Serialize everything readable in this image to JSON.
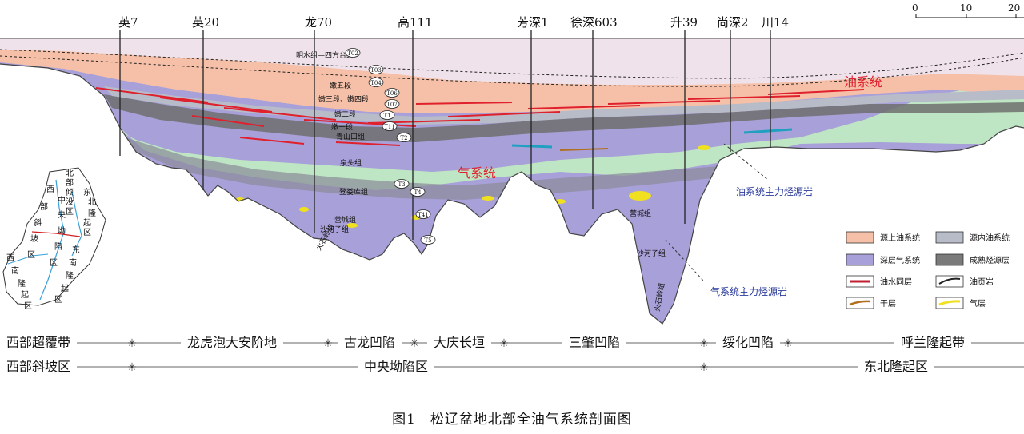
{
  "wells": [
    "英7",
    "英20",
    "龙70",
    "高111",
    "芳深1",
    "徐深603",
    "升39",
    "尚深2",
    "川14"
  ],
  "formations": [
    "明水组—四方台组",
    "嫩五段",
    "嫩三段、嫩四段",
    "嫩二段",
    "嫩一段",
    "青山口组",
    "泉头组",
    "登娄库组",
    "营城组",
    "沙河子组",
    "火石岭组"
  ],
  "strata_codes": [
    "T02",
    "T03",
    "T04",
    "T06",
    "T07",
    "T1",
    "T11",
    "T2",
    "T3",
    "T4",
    "T41",
    "T5"
  ],
  "deep_formations": [
    "营城组",
    "沙河子组",
    "火石岭组"
  ],
  "systems": {
    "oil": "油系统",
    "gas": "气系统"
  },
  "callouts": {
    "oil_source": "油系统主力烃源岩",
    "gas_source": "气系统主力烃源岩"
  },
  "scale": {
    "ticks": [
      "0",
      "10",
      "20"
    ]
  },
  "legend": [
    {
      "label": "源上油系统",
      "color": "#f6c0a8"
    },
    {
      "label": "源内油系统",
      "color": "#b8bcc8"
    },
    {
      "label": "深层气系统",
      "color": "#a8a0d8"
    },
    {
      "label": "成熟烃源层",
      "color": "#7a7a7a"
    },
    {
      "label": "油水同层",
      "color": "#c02030"
    },
    {
      "label": "油页岩",
      "color": "#222222"
    },
    {
      "label": "干层",
      "color": "#b07020"
    },
    {
      "label": "气层",
      "color": "#f0e020"
    }
  ],
  "zones_row1": [
    "西部超覆带",
    "龙虎泡大安阶地",
    "古龙凹陷",
    "大庆长垣",
    "三肇凹陷",
    "绥化凹陷",
    "呼兰隆起带"
  ],
  "zones_row2": [
    "西部斜坡区",
    "中央坳陷区",
    "东北隆起区"
  ],
  "inset": {
    "labels": [
      "北部倾没区",
      "西部斜坡区",
      "中央坳陷区",
      "东北隆起区",
      "西南隆起区",
      "东南隆起区"
    ],
    "chars": [
      "北",
      "部",
      "倾",
      "没",
      "区",
      "西",
      "部",
      "斜",
      "坡",
      "区",
      "中",
      "央",
      "坳",
      "陷",
      "区",
      "东",
      "北",
      "隆",
      "起",
      "区",
      "西",
      "南",
      "隆",
      "起",
      "区",
      "东",
      "南",
      "隆",
      "起",
      "区"
    ]
  },
  "caption": "图1　松辽盆地北部全油气系统剖面图",
  "colors": {
    "upper_oil": "#f6c0a8",
    "upper_top": "#efe2ea",
    "green": "#bfe6c4",
    "gas": "#a8a0d8",
    "inner": "#b8bcc8",
    "source": "#6f6f6f",
    "oil_layer": "#e0202c"
  }
}
